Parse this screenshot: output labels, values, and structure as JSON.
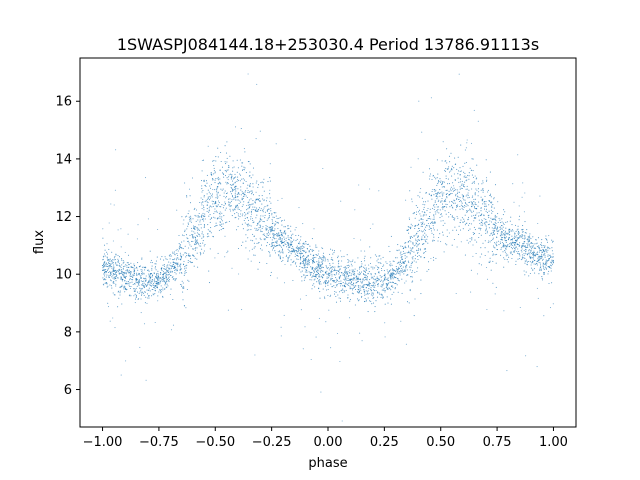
{
  "chart_data": {
    "type": "scatter",
    "title": "1SWASPJ084144.18+253030.4 Period 13786.91113s",
    "xlabel": "phase",
    "ylabel": "flux",
    "xlim": [
      -1.1,
      1.1
    ],
    "ylim": [
      4.7,
      17.5
    ],
    "xticks": [
      -1.0,
      -0.75,
      -0.5,
      -0.25,
      0.0,
      0.25,
      0.5,
      0.75,
      1.0
    ],
    "xtick_labels": [
      "−1.00",
      "−0.75",
      "−0.50",
      "−0.25",
      "0.00",
      "0.25",
      "0.50",
      "0.75",
      "1.00"
    ],
    "yticks": [
      6,
      8,
      10,
      12,
      14,
      16
    ],
    "ytick_labels": [
      "6",
      "8",
      "10",
      "12",
      "14",
      "16"
    ],
    "grid": false,
    "legend": false,
    "point_color": "#1f77b4",
    "series": [
      {
        "x": [
          -1.0,
          -0.95,
          -0.9,
          -0.85,
          -0.8,
          -0.75,
          -0.7,
          -0.65,
          -0.6,
          -0.55,
          -0.5,
          -0.45,
          -0.4,
          -0.35,
          -0.3,
          -0.25,
          -0.2,
          -0.15,
          -0.1,
          -0.05,
          0.0,
          0.05,
          0.1,
          0.15,
          0.2,
          0.25,
          0.3,
          0.35,
          0.4,
          0.45,
          0.5,
          0.55,
          0.6,
          0.65,
          0.7,
          0.75,
          0.8,
          0.85,
          0.9,
          0.95,
          1.0
        ],
        "y": [
          10.3,
          10.1,
          9.9,
          9.8,
          9.7,
          9.8,
          10.1,
          10.6,
          11.3,
          12.0,
          12.5,
          12.8,
          12.7,
          12.3,
          11.9,
          11.5,
          11.1,
          10.8,
          10.5,
          10.2,
          10.0,
          9.9,
          9.8,
          9.7,
          9.7,
          9.8,
          10.1,
          10.6,
          11.3,
          12.0,
          12.5,
          12.8,
          12.7,
          12.3,
          11.9,
          11.5,
          11.2,
          11.0,
          10.8,
          10.6,
          10.4
        ]
      }
    ]
  }
}
